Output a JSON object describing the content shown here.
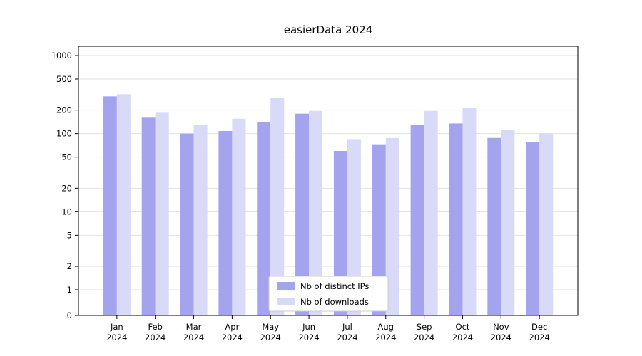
{
  "chart_data": {
    "type": "bar",
    "title": "easierData 2024",
    "yscale": "symlog",
    "grid": true,
    "legend_position": "lower center",
    "year": "2024",
    "categories": [
      "Jan",
      "Feb",
      "Mar",
      "Apr",
      "May",
      "Jun",
      "Jul",
      "Aug",
      "Sep",
      "Oct",
      "Nov",
      "Dec"
    ],
    "yticks": [
      0,
      1,
      2,
      5,
      10,
      20,
      50,
      100,
      200,
      500,
      1000
    ],
    "ylim": [
      0,
      1000
    ],
    "series": [
      {
        "name": "Nb of distinct IPs",
        "color": "#a3a3ee",
        "values": [
          300,
          160,
          100,
          108,
          140,
          180,
          60,
          73,
          130,
          135,
          88,
          78
        ]
      },
      {
        "name": "Nb of downloads",
        "color": "#d9d9f8",
        "values": [
          320,
          185,
          128,
          155,
          285,
          195,
          85,
          88,
          195,
          215,
          112,
          100
        ]
      }
    ]
  }
}
